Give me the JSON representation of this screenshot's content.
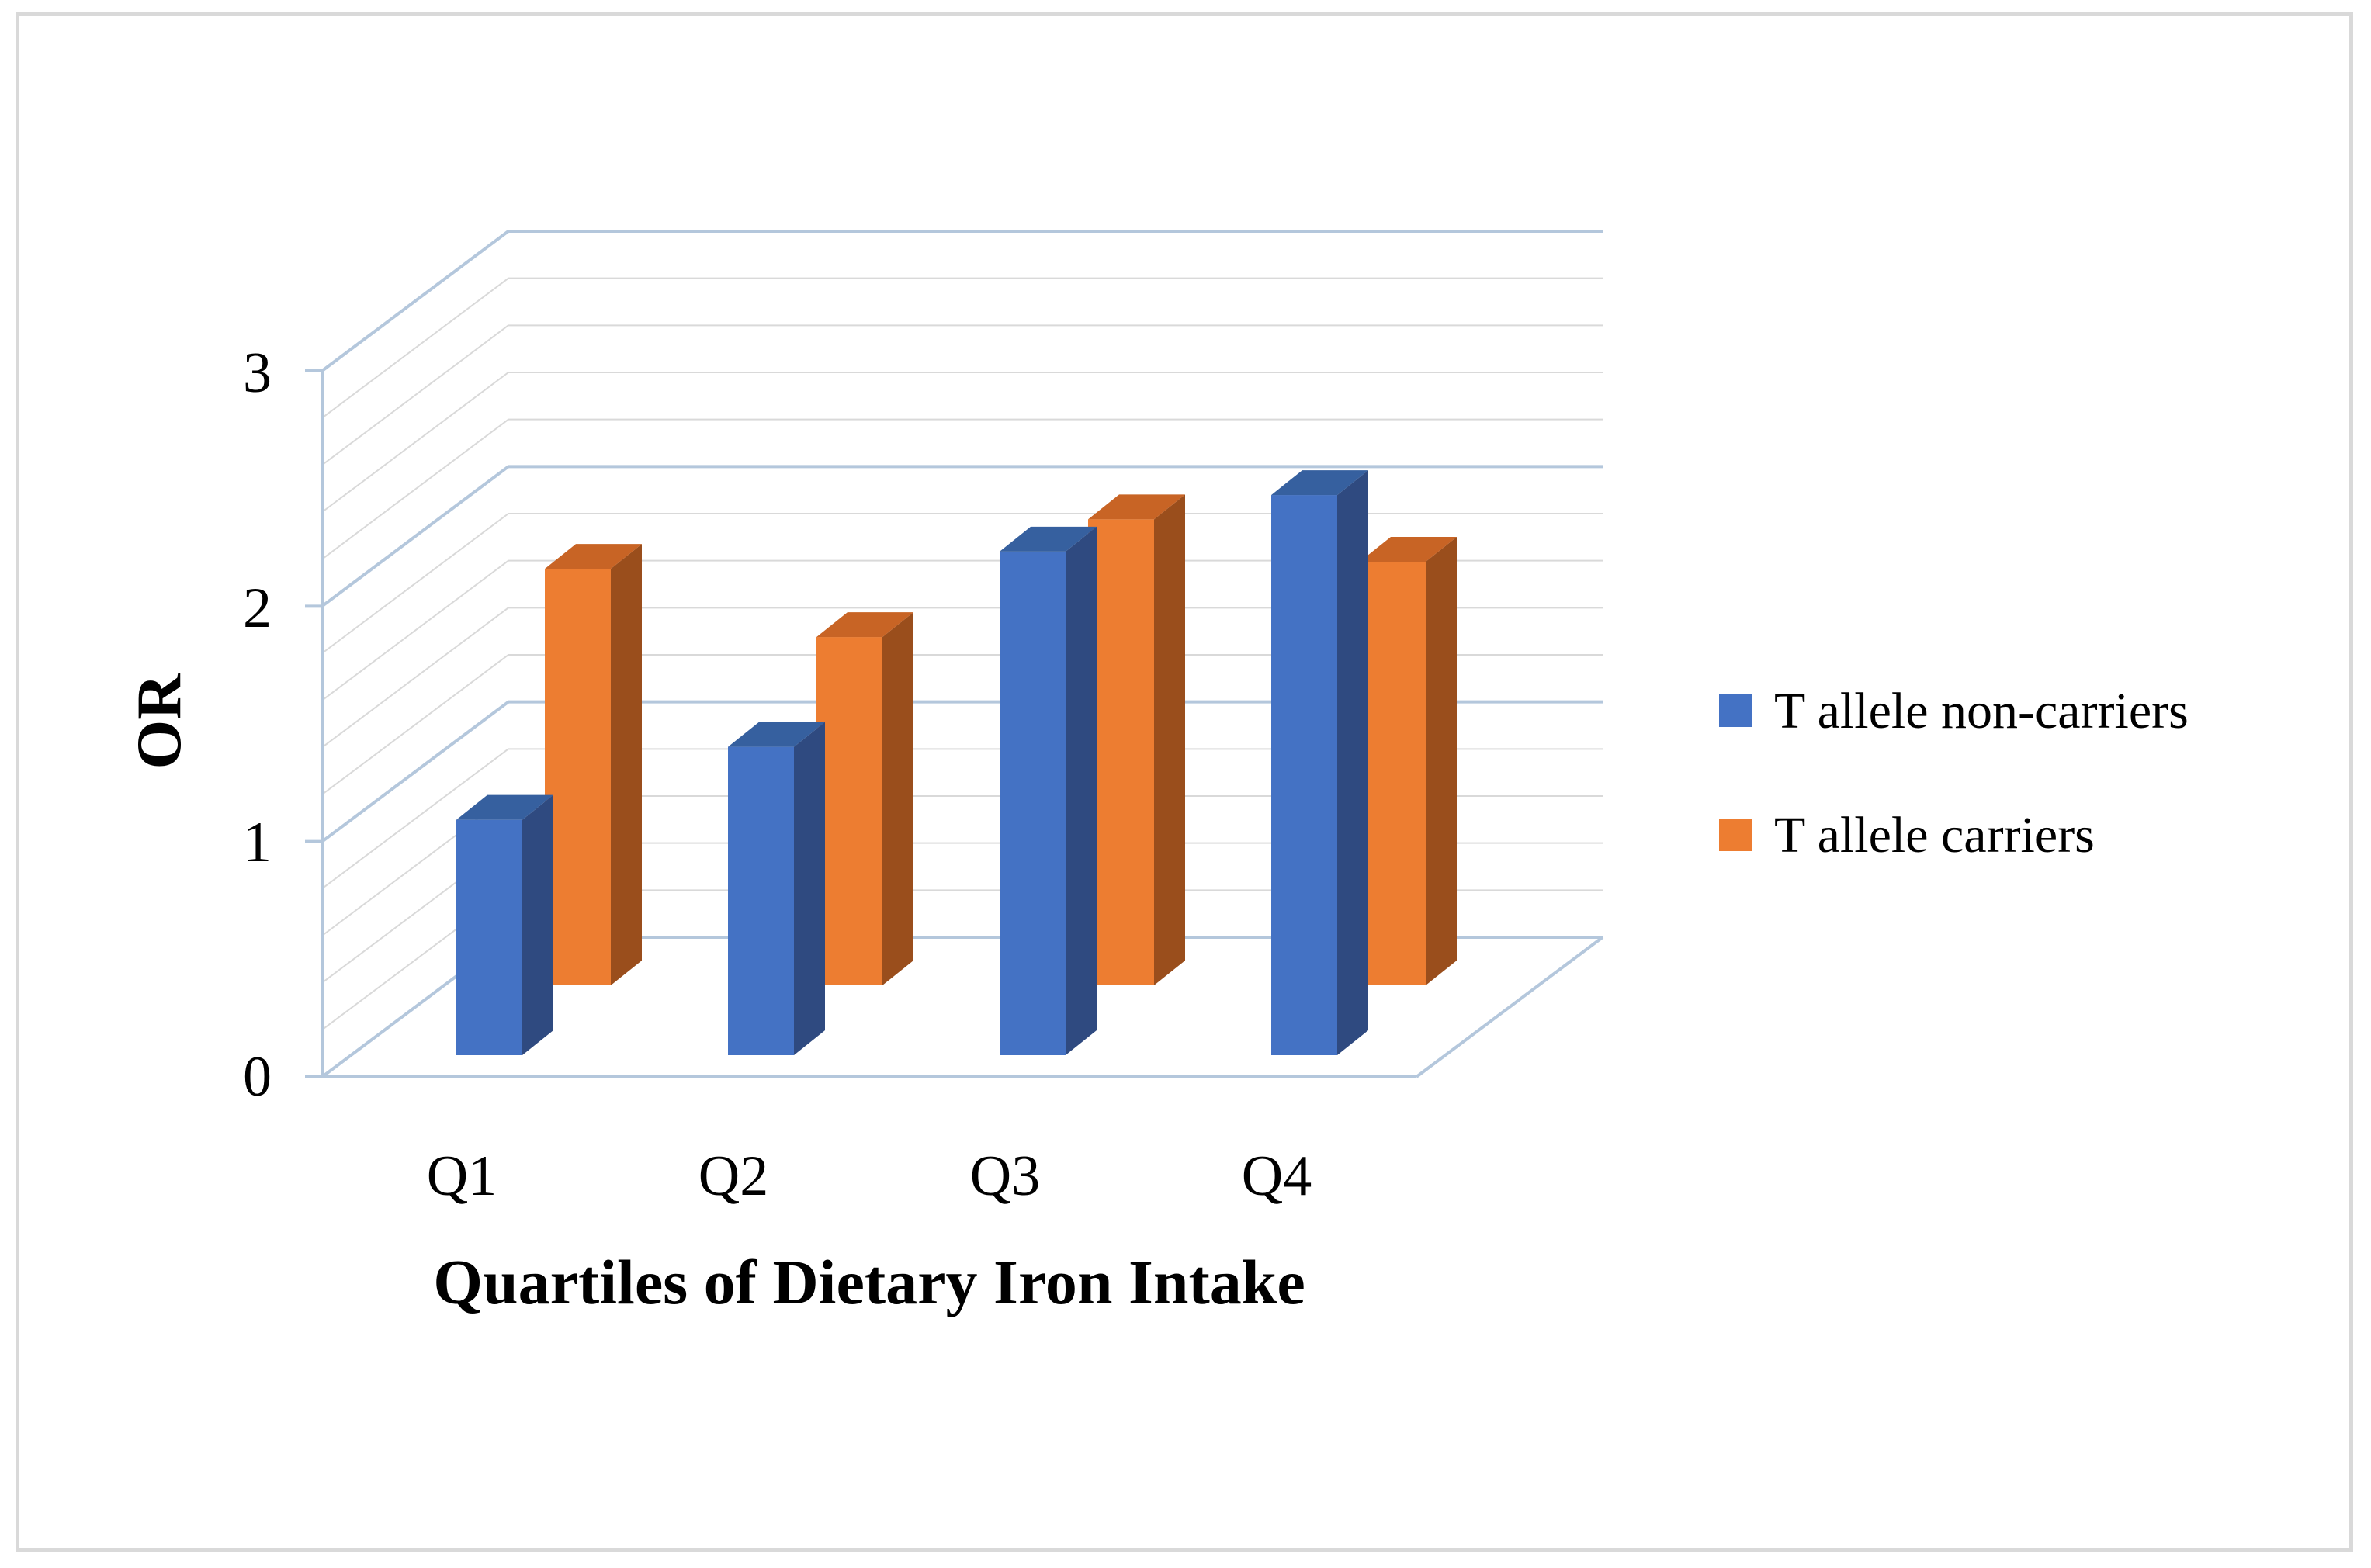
{
  "chart_data": {
    "type": "bar",
    "style": "3d-clustered-column",
    "title": "",
    "xlabel": "Quartiles of Dietary Iron Intake",
    "ylabel": "OR",
    "categories": [
      "Q1",
      "Q2",
      "Q3",
      "Q4"
    ],
    "yticks": [
      "0",
      "1",
      "2",
      "3"
    ],
    "ylim": [
      0,
      3
    ],
    "grid": true,
    "legend_position": "right",
    "series": [
      {
        "name": "T allele non-carriers",
        "values": [
          1.0,
          1.31,
          2.14,
          2.38
        ],
        "color": "#4472c4",
        "side_color": "#2f4a80",
        "top_color": "#36609f"
      },
      {
        "name": "T allele carriers",
        "values": [
          1.77,
          1.48,
          1.98,
          1.8
        ],
        "color": "#ed7d31",
        "side_color": "#9a4e1c",
        "top_color": "#c86425"
      }
    ],
    "colors": {
      "grid": "#d9d9d9",
      "axis": "#b4c7dc"
    }
  }
}
